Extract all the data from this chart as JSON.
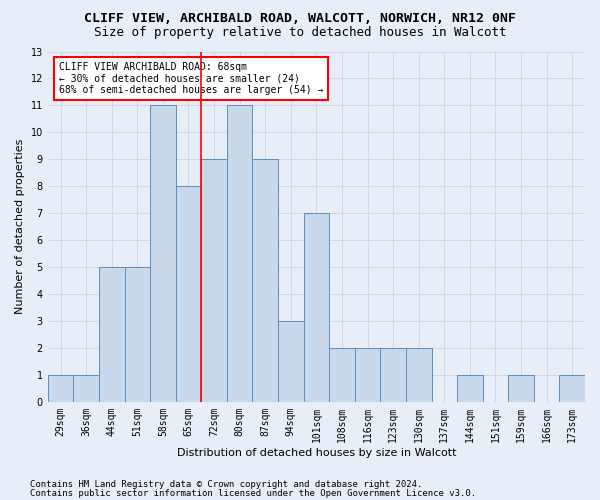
{
  "title": "CLIFF VIEW, ARCHIBALD ROAD, WALCOTT, NORWICH, NR12 0NF",
  "subtitle": "Size of property relative to detached houses in Walcott",
  "xlabel": "Distribution of detached houses by size in Walcott",
  "ylabel": "Number of detached properties",
  "categories": [
    "29sqm",
    "36sqm",
    "44sqm",
    "51sqm",
    "58sqm",
    "65sqm",
    "72sqm",
    "80sqm",
    "87sqm",
    "94sqm",
    "101sqm",
    "108sqm",
    "116sqm",
    "123sqm",
    "130sqm",
    "137sqm",
    "144sqm",
    "151sqm",
    "159sqm",
    "166sqm",
    "173sqm"
  ],
  "values": [
    1,
    1,
    5,
    5,
    11,
    8,
    9,
    11,
    9,
    3,
    7,
    2,
    2,
    2,
    2,
    0,
    1,
    0,
    1,
    0,
    1
  ],
  "bar_color": "#c9d9ec",
  "bar_edge_color": "#5b8db8",
  "red_line_x": 5.5,
  "annotation_text": "CLIFF VIEW ARCHIBALD ROAD: 68sqm\n← 30% of detached houses are smaller (24)\n68% of semi-detached houses are larger (54) →",
  "annotation_box_color": "white",
  "annotation_box_edge_color": "red",
  "ylim": [
    0,
    13
  ],
  "yticks": [
    0,
    1,
    2,
    3,
    4,
    5,
    6,
    7,
    8,
    9,
    10,
    11,
    12,
    13
  ],
  "footer1": "Contains HM Land Registry data © Crown copyright and database right 2024.",
  "footer2": "Contains public sector information licensed under the Open Government Licence v3.0.",
  "background_color": "#e8eef8",
  "grid_color": "#c8d4e8",
  "title_fontsize": 9.5,
  "subtitle_fontsize": 9,
  "axis_label_fontsize": 8,
  "tick_fontsize": 7,
  "footer_fontsize": 6.5,
  "annotation_fontsize": 7
}
